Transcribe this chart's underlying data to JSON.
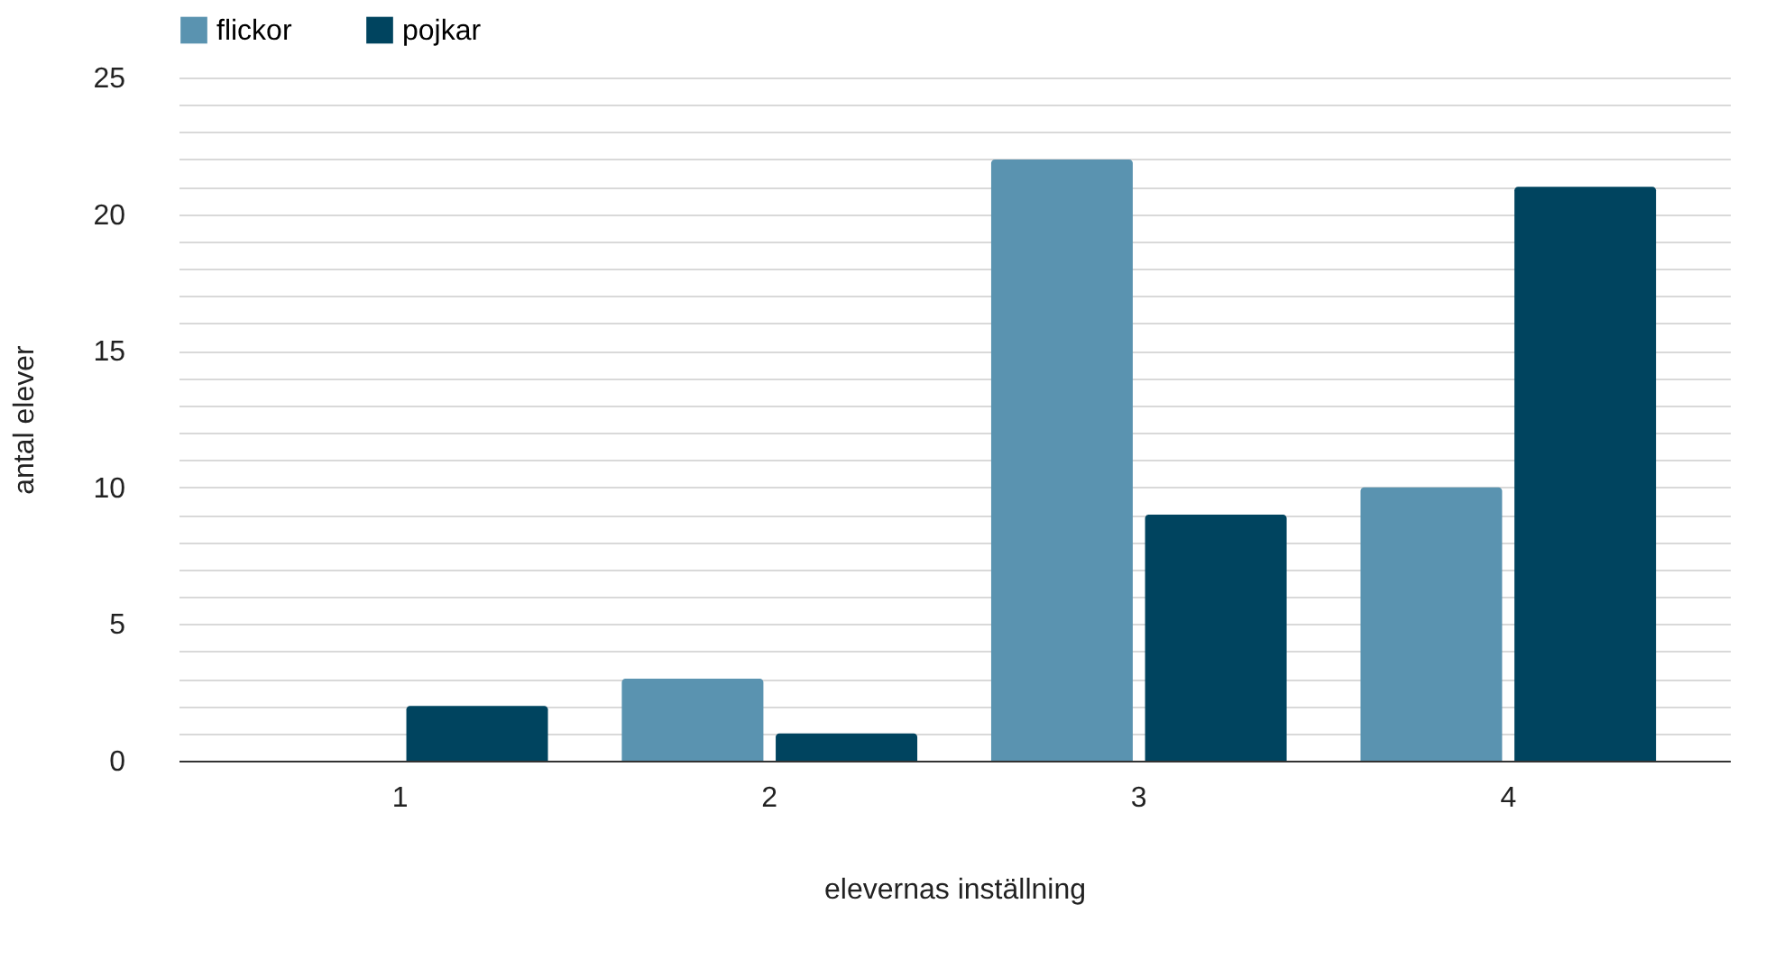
{
  "chart_data": {
    "type": "bar",
    "xlabel": "elevernas inställning",
    "ylabel": "antal elever",
    "categories": [
      "1",
      "2",
      "3",
      "4"
    ],
    "series": [
      {
        "name": "flickor",
        "color": "#5a93b0",
        "values": [
          0,
          3,
          22,
          10
        ]
      },
      {
        "name": "pojkar",
        "color": "#00445f",
        "values": [
          2,
          1,
          9,
          21
        ]
      }
    ],
    "ylim": [
      0,
      25
    ],
    "yticks": [
      0,
      {
        "value": 1,
        "label": null
      },
      {
        "value": 2,
        "label": null
      },
      {
        "value": 3,
        "label": null
      },
      {
        "value": 4,
        "label": null
      },
      5,
      {
        "value": 6,
        "label": null
      },
      {
        "value": 7,
        "label": null
      },
      {
        "value": 8,
        "label": null
      },
      {
        "value": 9,
        "label": null
      },
      10,
      {
        "value": 11,
        "label": null
      },
      {
        "value": 12,
        "label": null
      },
      {
        "value": 13,
        "label": null
      },
      {
        "value": 14,
        "label": null
      },
      15,
      {
        "value": 16,
        "label": null
      },
      {
        "value": 17,
        "label": null
      },
      {
        "value": 18,
        "label": null
      },
      {
        "value": 19,
        "label": null
      },
      20,
      {
        "value": 21,
        "label": null
      },
      {
        "value": 22,
        "label": null
      },
      {
        "value": 23,
        "label": null
      },
      {
        "value": 24,
        "label": null
      },
      25
    ],
    "grid": "y",
    "legend": "top"
  }
}
